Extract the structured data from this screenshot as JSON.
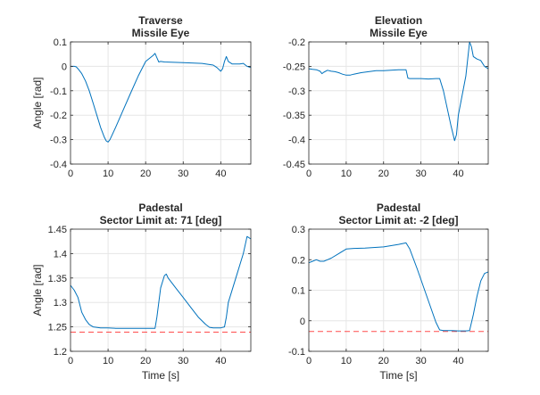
{
  "figure": {
    "background": "#ffffff"
  },
  "colors": {
    "series": "#0072BD",
    "limit": "#ff4d4d",
    "grid": "#e6e6e6",
    "axis": "#262626"
  },
  "chart_data": [
    {
      "type": "line",
      "title": [
        "Traverse",
        "Missile Eye"
      ],
      "xlabel": "",
      "ylabel": "Angle [rad]",
      "xlim": [
        0,
        48
      ],
      "ylim": [
        -0.4,
        0.1
      ],
      "xticks": [
        0,
        10,
        20,
        30,
        40
      ],
      "yticks": [
        -0.4,
        -0.3,
        -0.2,
        -0.1,
        0,
        0.1
      ],
      "ytick_labels": [
        "-0.4",
        "-0.3",
        "-0.2",
        "-0.1",
        "0",
        "0.1"
      ],
      "grid": true,
      "series": [
        {
          "x": [
            0,
            1,
            1.5,
            2,
            3,
            4,
            5,
            6,
            7,
            8,
            9,
            9.5,
            10,
            10.5,
            12,
            14,
            16,
            18,
            20,
            22,
            22.5,
            23,
            23.5,
            24,
            25,
            30,
            35,
            38,
            39,
            40,
            40.5,
            41,
            41.5,
            42,
            43,
            45,
            46,
            47,
            48
          ],
          "y": [
            0,
            0,
            -0.002,
            -0.01,
            -0.03,
            -0.06,
            -0.1,
            -0.15,
            -0.2,
            -0.25,
            -0.29,
            -0.305,
            -0.31,
            -0.3,
            -0.25,
            -0.18,
            -0.11,
            -0.04,
            0.02,
            0.045,
            0.053,
            0.035,
            0.018,
            0.02,
            0.018,
            0.015,
            0.012,
            0.005,
            -0.005,
            -0.02,
            -0.01,
            0.02,
            0.04,
            0.02,
            0.01,
            0.01,
            0.012,
            0,
            -0.005
          ]
        }
      ],
      "limit_line": null
    },
    {
      "type": "line",
      "title": [
        "Elevation",
        "Missile Eye"
      ],
      "xlabel": "",
      "ylabel": "",
      "xlim": [
        0,
        48
      ],
      "ylim": [
        -0.45,
        -0.2
      ],
      "xticks": [
        0,
        10,
        20,
        30,
        40
      ],
      "yticks": [
        -0.45,
        -0.4,
        -0.35,
        -0.3,
        -0.25,
        -0.2
      ],
      "ytick_labels": [
        "-0.45",
        "-0.4",
        "-0.35",
        "-0.3",
        "-0.25",
        "-0.2"
      ],
      "grid": true,
      "series": [
        {
          "x": [
            0,
            1,
            2,
            3,
            3.5,
            4,
            5,
            6,
            7,
            8,
            9,
            10,
            11,
            12,
            14,
            16,
            18,
            20,
            22,
            24,
            26,
            26.5,
            27,
            28,
            30,
            32,
            34,
            35,
            36,
            38,
            39,
            39.5,
            40,
            42,
            43,
            43.5,
            44,
            45,
            46,
            47,
            48
          ],
          "y": [
            -0.255,
            -0.256,
            -0.257,
            -0.26,
            -0.265,
            -0.262,
            -0.258,
            -0.26,
            -0.261,
            -0.263,
            -0.266,
            -0.268,
            -0.268,
            -0.266,
            -0.263,
            -0.261,
            -0.259,
            -0.259,
            -0.258,
            -0.257,
            -0.257,
            -0.274,
            -0.275,
            -0.275,
            -0.275,
            -0.276,
            -0.275,
            -0.275,
            -0.3,
            -0.37,
            -0.402,
            -0.39,
            -0.35,
            -0.27,
            -0.2,
            -0.21,
            -0.23,
            -0.235,
            -0.238,
            -0.25,
            -0.255
          ]
        }
      ],
      "limit_line": null
    },
    {
      "type": "line",
      "title": [
        "Padestal",
        "Sector Limit at: 71 [deg]"
      ],
      "xlabel": "Time [s]",
      "ylabel": "Angle [rad]",
      "xlim": [
        0,
        48
      ],
      "ylim": [
        1.2,
        1.45
      ],
      "xticks": [
        0,
        10,
        20,
        30,
        40
      ],
      "yticks": [
        1.2,
        1.25,
        1.3,
        1.35,
        1.4,
        1.45
      ],
      "ytick_labels": [
        "1.2",
        "1.25",
        "1.3",
        "1.35",
        "1.4",
        "1.45"
      ],
      "grid": true,
      "series": [
        {
          "x": [
            0,
            1,
            2,
            3,
            4,
            5,
            6,
            8,
            10,
            12,
            15,
            20,
            22.5,
            23,
            23.5,
            24,
            25,
            25.5,
            26,
            28,
            30,
            32,
            34,
            36,
            37,
            38,
            40,
            41,
            41.5,
            42,
            44,
            46,
            47,
            48
          ],
          "y": [
            1.335,
            1.325,
            1.31,
            1.28,
            1.265,
            1.255,
            1.25,
            1.248,
            1.248,
            1.247,
            1.247,
            1.247,
            1.247,
            1.27,
            1.3,
            1.33,
            1.355,
            1.358,
            1.35,
            1.33,
            1.31,
            1.29,
            1.27,
            1.255,
            1.249,
            1.248,
            1.248,
            1.25,
            1.27,
            1.3,
            1.35,
            1.4,
            1.435,
            1.43
          ]
        }
      ],
      "limit_line": 1.2392
    },
    {
      "type": "line",
      "title": [
        "Padestal",
        "Sector Limit at: -2 [deg]"
      ],
      "xlabel": "Time [s]",
      "ylabel": "",
      "xlim": [
        0,
        48
      ],
      "ylim": [
        -0.1,
        0.3
      ],
      "xticks": [
        0,
        10,
        20,
        30,
        40
      ],
      "yticks": [
        -0.1,
        0,
        0.1,
        0.2,
        0.3
      ],
      "ytick_labels": [
        "-0.1",
        "0",
        "0.1",
        "0.2",
        "0.3"
      ],
      "grid": true,
      "series": [
        {
          "x": [
            0,
            1,
            2,
            3,
            4,
            5,
            6,
            8,
            10,
            12,
            15,
            20,
            24,
            26,
            27,
            29,
            31,
            33,
            34,
            35,
            36,
            38,
            40,
            42,
            43,
            44,
            45,
            46,
            47,
            48
          ],
          "y": [
            0.19,
            0.195,
            0.2,
            0.195,
            0.195,
            0.2,
            0.205,
            0.22,
            0.235,
            0.237,
            0.238,
            0.242,
            0.25,
            0.255,
            0.235,
            0.17,
            0.1,
            0.03,
            -0.005,
            -0.03,
            -0.032,
            -0.032,
            -0.033,
            -0.033,
            -0.032,
            0.02,
            0.08,
            0.13,
            0.155,
            0.16
          ]
        }
      ],
      "limit_line": -0.0349
    }
  ]
}
